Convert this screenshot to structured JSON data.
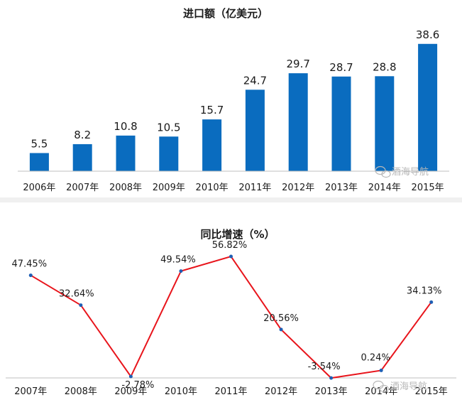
{
  "chart_data": [
    {
      "type": "bar",
      "title": "进口额（亿美元）",
      "categories": [
        "2006年",
        "2007年",
        "2008年",
        "2009年",
        "2010年",
        "2011年",
        "2012年",
        "2013年",
        "2014年",
        "2015年"
      ],
      "values": [
        5.5,
        8.2,
        10.8,
        10.5,
        15.7,
        24.7,
        29.7,
        28.7,
        28.8,
        38.6
      ],
      "labels": [
        "5.5",
        "8.2",
        "10.8",
        "10.5",
        "15.7",
        "24.7",
        "29.7",
        "28.7",
        "28.8",
        "38.6"
      ],
      "ylim": [
        0,
        42
      ],
      "bar_color": "#0a6cbf",
      "grid": false,
      "legend": "none"
    },
    {
      "type": "line",
      "title": "同比增速（%）",
      "categories": [
        "2007年",
        "2008年",
        "2009年",
        "2010年",
        "2011年",
        "2012年",
        "2013年",
        "2014年",
        "2015年"
      ],
      "values": [
        47.45,
        32.64,
        -2.78,
        49.54,
        56.82,
        20.56,
        -3.54,
        0.24,
        34.13
      ],
      "labels": [
        "47.45%",
        "32.64%",
        "-2.78%",
        "49.54%",
        "56.82%",
        "20.56%",
        "-3.54%",
        "0.24%",
        "34.13%"
      ],
      "ylim": [
        -5,
        70
      ],
      "line_color": "#e8141b",
      "marker_color": "#1f5fb4",
      "grid": false,
      "legend": "none"
    }
  ],
  "watermark": {
    "text": "酒海导航",
    "icon": "wechat-icon"
  }
}
